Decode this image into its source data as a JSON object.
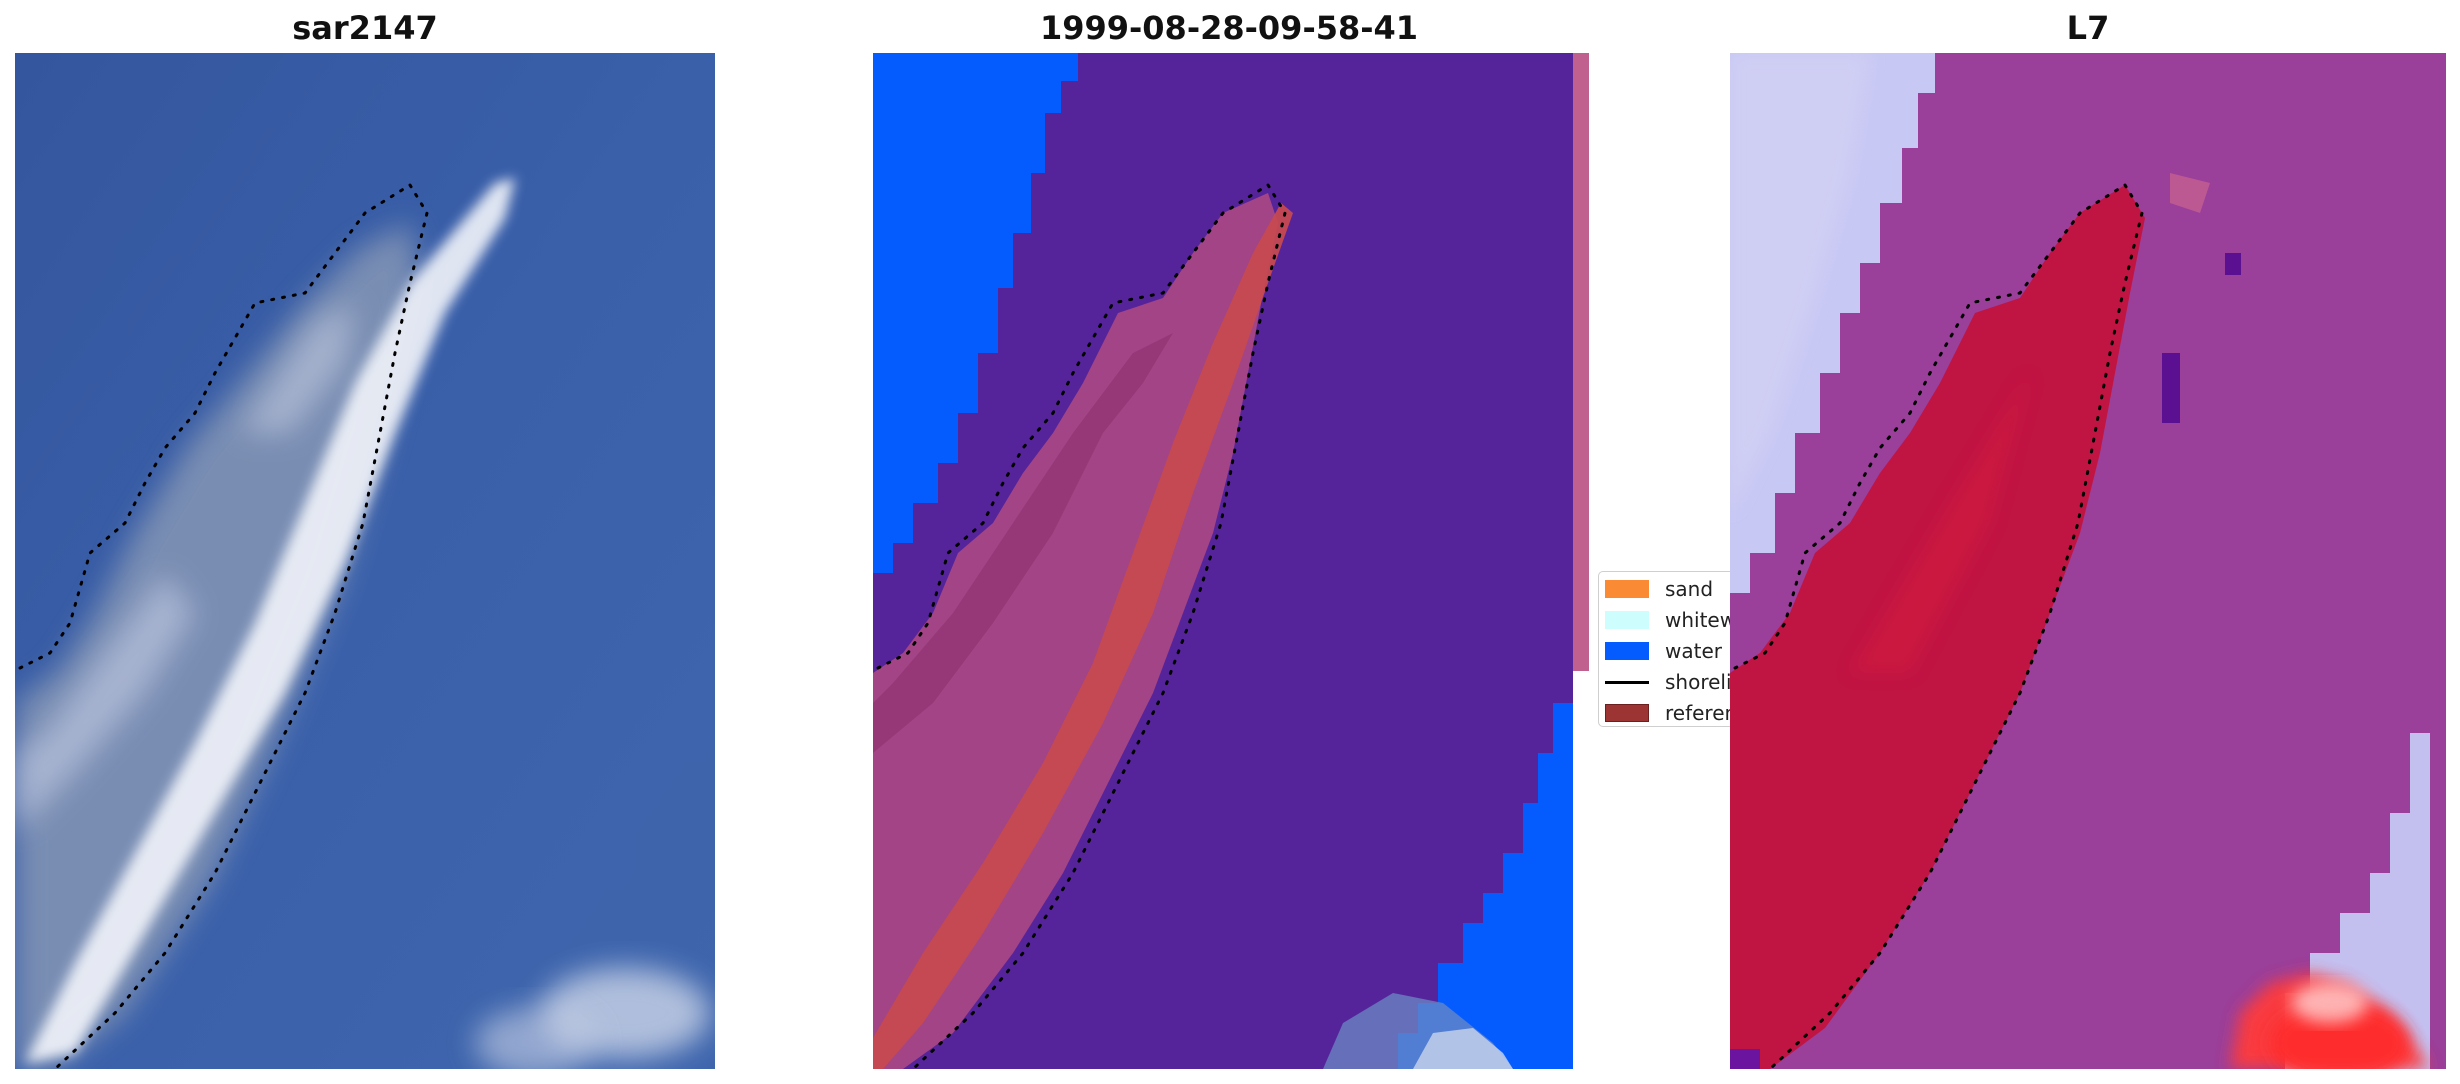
{
  "panels": [
    {
      "title": "sar2147"
    },
    {
      "title": "1999-08-28-09-58-41"
    },
    {
      "title": "L7"
    }
  ],
  "legend": {
    "items": [
      {
        "label": "sand",
        "color": "#fb8a35"
      },
      {
        "label": "whitewater",
        "color": "#cdfdfd"
      },
      {
        "label": "water",
        "color": "#055cfe"
      },
      {
        "label": "shoreline",
        "color": "#000000"
      },
      {
        "label": "reference shoreline",
        "color": "#9c3434"
      }
    ]
  },
  "colors": {
    "ocean_rgb": "#3a5fa8",
    "classified_background": "#56249a",
    "classified_sand": "#b5416a",
    "index_background": "#9a3f9a",
    "index_land": "#c3103c",
    "index_water": "#c8c8f5"
  }
}
